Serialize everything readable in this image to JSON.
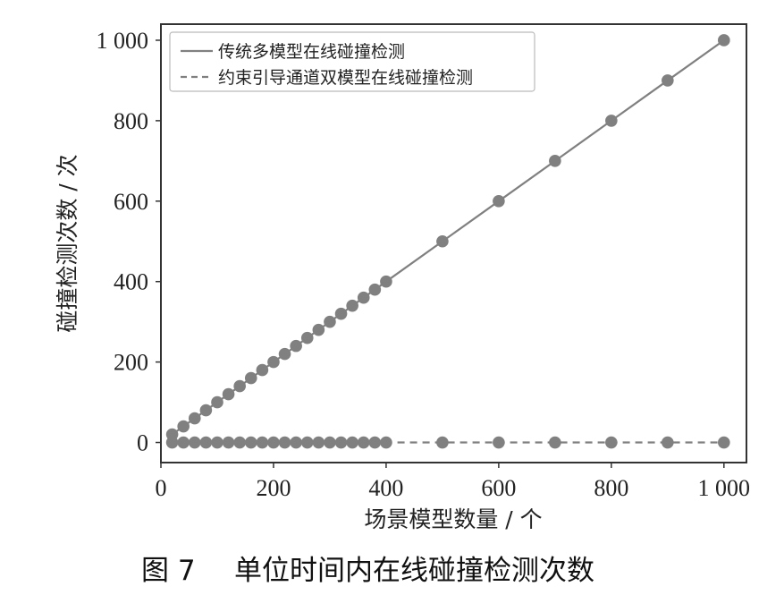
{
  "chart_data": {
    "type": "line",
    "xlabel": "场景模型数量 / 个",
    "ylabel": "碰撞检测次数 / 次",
    "xlim": [
      0,
      1040
    ],
    "ylim": [
      -50,
      1040
    ],
    "xticks": [
      0,
      200,
      400,
      600,
      800,
      1000
    ],
    "xtick_labels": [
      "0",
      "200",
      "400",
      "600",
      "800",
      "1 000"
    ],
    "yticks": [
      0,
      200,
      400,
      600,
      800,
      1000
    ],
    "ytick_labels": [
      "0",
      "200",
      "400",
      "600",
      "800",
      "1 000"
    ],
    "grid": false,
    "legend_position": "top-left",
    "series": [
      {
        "name": "传统多模型在线碰撞检测",
        "style": "solid",
        "color": "#808080",
        "x": [
          20,
          40,
          60,
          80,
          100,
          120,
          140,
          160,
          180,
          200,
          220,
          240,
          260,
          280,
          300,
          320,
          340,
          360,
          380,
          400,
          500,
          600,
          700,
          800,
          900,
          1000
        ],
        "y": [
          20,
          40,
          60,
          80,
          100,
          120,
          140,
          160,
          180,
          200,
          220,
          240,
          260,
          280,
          300,
          320,
          340,
          360,
          380,
          400,
          500,
          600,
          700,
          800,
          900,
          1000
        ]
      },
      {
        "name": "约束引导通道双模型在线碰撞检测",
        "style": "dashed",
        "color": "#808080",
        "x": [
          20,
          40,
          60,
          80,
          100,
          120,
          140,
          160,
          180,
          200,
          220,
          240,
          260,
          280,
          300,
          320,
          340,
          360,
          380,
          400,
          500,
          600,
          700,
          800,
          900,
          1000
        ],
        "y": [
          0,
          0,
          0,
          0,
          0,
          0,
          0,
          0,
          0,
          0,
          0,
          0,
          0,
          0,
          0,
          0,
          0,
          0,
          0,
          0,
          0,
          0,
          0,
          0,
          0,
          0
        ]
      }
    ]
  },
  "caption": {
    "figure_number": "图 7",
    "title": "单位时间内在线碰撞检测次数"
  }
}
